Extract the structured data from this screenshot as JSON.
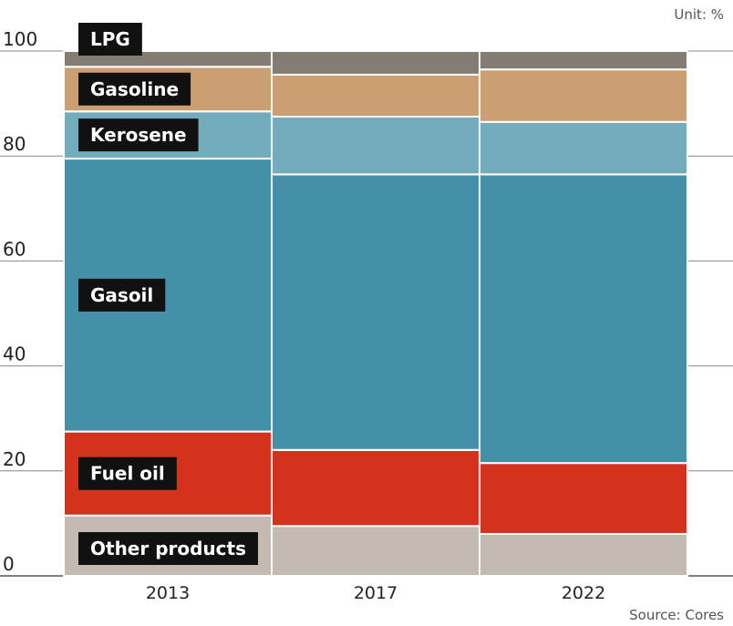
{
  "unit_note": "Unit: %",
  "source": "Source: Cores",
  "chart_data": {
    "type": "bar",
    "stacked": true,
    "categories": [
      "2013",
      "2017",
      "2022"
    ],
    "ylim": [
      0,
      100
    ],
    "yticks": [
      "0",
      "20",
      "40",
      "60",
      "80",
      "100"
    ],
    "grid": true,
    "series": [
      {
        "name": "Other products",
        "color": "#c3bbb1",
        "values": [
          11.5,
          9.5,
          8
        ]
      },
      {
        "name": "Fuel oil",
        "color": "#d3321c",
        "values": [
          16,
          14.5,
          13.5
        ]
      },
      {
        "name": "Gasoil",
        "color": "#4390a8",
        "values": [
          52,
          52.5,
          55
        ]
      },
      {
        "name": "Kerosene",
        "color": "#73adbd",
        "values": [
          9,
          11,
          10
        ]
      },
      {
        "name": "Gasoline",
        "color": "#cc9f72",
        "values": [
          8.5,
          8,
          10
        ]
      },
      {
        "name": "LPG",
        "color": "#827c72",
        "values": [
          3,
          4.5,
          3.5
        ]
      }
    ]
  }
}
